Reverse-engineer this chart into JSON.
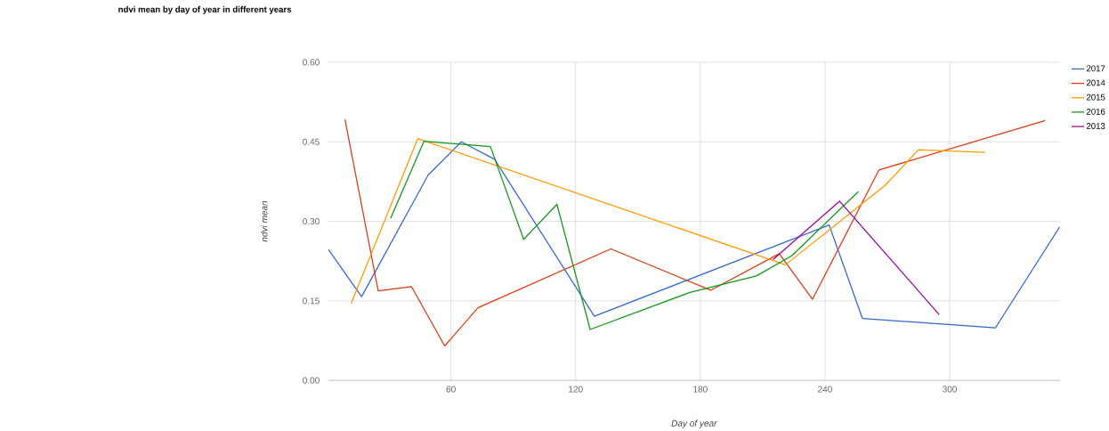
{
  "chart_data": {
    "type": "line",
    "title": "ndvi mean by day of year in different years",
    "xlabel": "Day of year",
    "ylabel": "ndvi mean",
    "xlim": [
      1,
      353
    ],
    "ylim": [
      0,
      0.6
    ],
    "xticks": [
      60,
      120,
      180,
      240,
      300
    ],
    "yticks": [
      {
        "value": 0,
        "label": "0.00"
      },
      {
        "value": 0.15,
        "label": "0.15"
      },
      {
        "value": 0.3,
        "label": "0.30"
      },
      {
        "value": 0.45,
        "label": "0.45"
      },
      {
        "value": 0.6,
        "label": "0.60"
      }
    ],
    "grid": true,
    "legend": "right",
    "marker": "none",
    "series": [
      {
        "name": "2017",
        "color": "#3366cc",
        "x": [
          1,
          17,
          49,
          65,
          81,
          129,
          242,
          258,
          322,
          353
        ],
        "values": [
          0.247,
          0.158,
          0.387,
          0.45,
          0.417,
          0.121,
          0.293,
          0.117,
          0.099,
          0.29
        ]
      },
      {
        "name": "2014",
        "color": "#dc3912",
        "x": [
          9,
          25,
          41,
          57,
          73,
          137,
          185,
          218,
          234,
          266,
          346
        ],
        "values": [
          0.492,
          0.169,
          0.177,
          0.065,
          0.137,
          0.248,
          0.17,
          0.239,
          0.153,
          0.397,
          0.49
        ]
      },
      {
        "name": "2015",
        "color": "#ff9900",
        "x": [
          12,
          44,
          221,
          269,
          285,
          317
        ],
        "values": [
          0.145,
          0.456,
          0.218,
          0.368,
          0.435,
          0.43
        ]
      },
      {
        "name": "2016",
        "color": "#109618",
        "x": [
          31,
          47,
          79,
          95,
          111,
          127,
          175,
          207,
          224,
          256
        ],
        "values": [
          0.306,
          0.451,
          0.441,
          0.266,
          0.332,
          0.096,
          0.166,
          0.197,
          0.235,
          0.356
        ]
      },
      {
        "name": "2013",
        "color": "#990099",
        "x": [
          215,
          247,
          295
        ],
        "values": [
          0.228,
          0.338,
          0.124
        ]
      }
    ]
  }
}
